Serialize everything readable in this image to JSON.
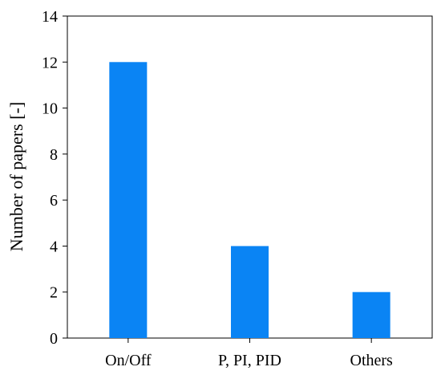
{
  "chart_data": {
    "type": "bar",
    "categories": [
      "On/Off",
      "P, PI, PID",
      "Others"
    ],
    "values": [
      12,
      4,
      2
    ],
    "title": "",
    "xlabel": "",
    "ylabel": "Number of papers [-]",
    "ylim": [
      0,
      14
    ],
    "yticks": [
      0,
      2,
      4,
      6,
      8,
      10,
      12,
      14
    ],
    "grid": false,
    "legend": "none",
    "bar_color": "#0a84f4",
    "axis_color": "#000000"
  }
}
